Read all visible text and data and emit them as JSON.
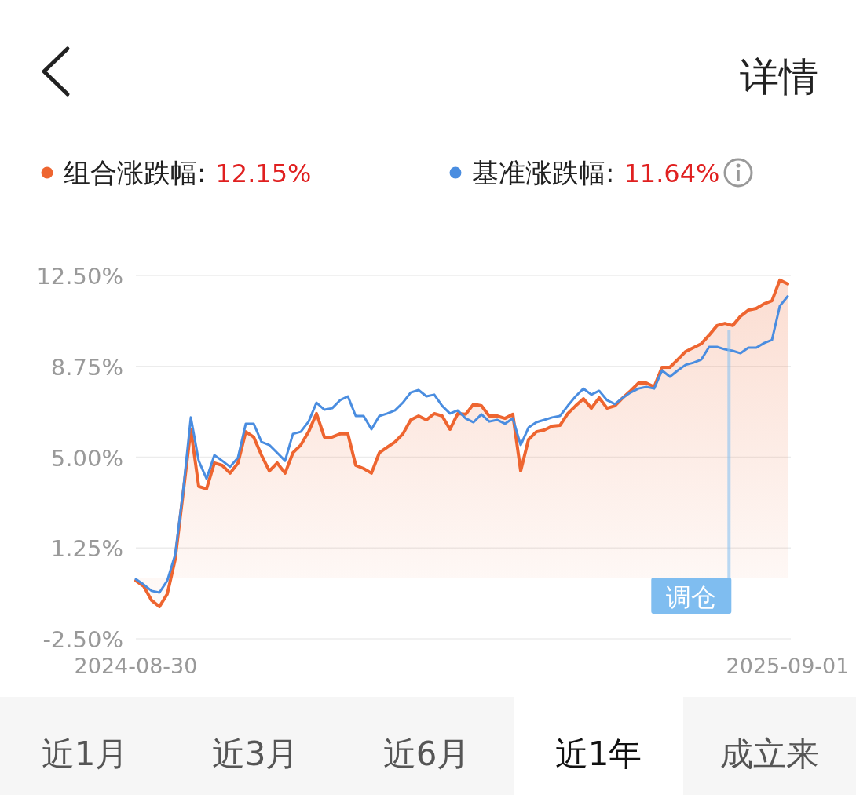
{
  "chart_data": {
    "type": "line",
    "categories": [
      "2024-08-30",
      null,
      null,
      null,
      null,
      null,
      null,
      null,
      null,
      null,
      null,
      null,
      null,
      null,
      null,
      null,
      null,
      null,
      null,
      null,
      null,
      null,
      null,
      null,
      null,
      null,
      null,
      null,
      null,
      null,
      null,
      null,
      null,
      null,
      null,
      null,
      null,
      null,
      null,
      null,
      null,
      null,
      null,
      null,
      null,
      null,
      null,
      null,
      null,
      null,
      null,
      null,
      null,
      null,
      null,
      null,
      null,
      null,
      null,
      null,
      null,
      null,
      null,
      null,
      null,
      null,
      null,
      null,
      null,
      null,
      null,
      null,
      null,
      null,
      null,
      null,
      null,
      null,
      null,
      null,
      null,
      null,
      null,
      "2025-09-01"
    ],
    "series": [
      {
        "name": "组合涨跌幅:",
        "type": "area",
        "color": "#ee6530",
        "values": [
          -0.1,
          -0.33,
          -0.91,
          -1.17,
          -0.65,
          0.77,
          3.46,
          6.15,
          3.79,
          3.69,
          4.76,
          4.66,
          4.34,
          4.76,
          6.05,
          5.83,
          5.08,
          4.43,
          4.76,
          4.34,
          5.18,
          5.5,
          6.05,
          6.8,
          5.83,
          5.83,
          5.96,
          5.96,
          4.66,
          4.53,
          4.34,
          5.18,
          5.41,
          5.63,
          5.96,
          6.54,
          6.7,
          6.54,
          6.8,
          6.7,
          6.15,
          6.8,
          6.77,
          7.19,
          7.12,
          6.7,
          6.7,
          6.6,
          6.77,
          4.43,
          5.73,
          6.05,
          6.12,
          6.28,
          6.31,
          6.8,
          7.12,
          7.41,
          7.02,
          7.45,
          7.02,
          7.12,
          7.45,
          7.74,
          8.06,
          8.06,
          7.9,
          8.71,
          8.71,
          9.03,
          9.36,
          9.52,
          9.68,
          10.04,
          10.43,
          10.52,
          10.43,
          10.82,
          11.07,
          11.14,
          11.33,
          11.46,
          12.31,
          12.15
        ]
      },
      {
        "name": "基准涨跌幅:",
        "color": "#4a8de0",
        "values": [
          -0.04,
          -0.26,
          -0.52,
          -0.59,
          -0.1,
          0.97,
          3.56,
          6.64,
          4.85,
          4.11,
          5.08,
          4.85,
          4.6,
          4.98,
          6.38,
          6.38,
          5.63,
          5.5,
          5.18,
          4.85,
          5.96,
          6.05,
          6.47,
          7.25,
          6.96,
          7.02,
          7.35,
          7.51,
          6.7,
          6.7,
          6.15,
          6.7,
          6.8,
          6.93,
          7.25,
          7.67,
          7.77,
          7.51,
          7.58,
          7.12,
          6.8,
          6.93,
          6.6,
          6.44,
          6.77,
          6.47,
          6.54,
          6.38,
          6.6,
          5.5,
          6.22,
          6.44,
          6.54,
          6.64,
          6.7,
          7.12,
          7.51,
          7.83,
          7.58,
          7.74,
          7.35,
          7.19,
          7.45,
          7.67,
          7.83,
          7.9,
          7.83,
          8.58,
          8.32,
          8.58,
          8.81,
          8.9,
          9.03,
          9.55,
          9.55,
          9.45,
          9.39,
          9.29,
          9.52,
          9.52,
          9.71,
          9.84,
          11.24,
          11.64
        ]
      }
    ],
    "ylim": [
      -2.5,
      12.5
    ],
    "yticks": [
      {
        "value": -2.5,
        "label": "-2.50%"
      },
      {
        "value": 1.25,
        "label": "1.25%"
      },
      {
        "value": 5,
        "label": "5.00%"
      },
      {
        "value": 8.75,
        "label": "8.75%"
      },
      {
        "value": 12.5,
        "label": "12.50%"
      }
    ],
    "grid": "y",
    "legend": "top",
    "annotations": [
      "12.15%",
      "11.64%",
      "调仓",
      "详情",
      "近1月",
      "近3月",
      "近6月",
      "近1年",
      "成立来"
    ]
  }
}
